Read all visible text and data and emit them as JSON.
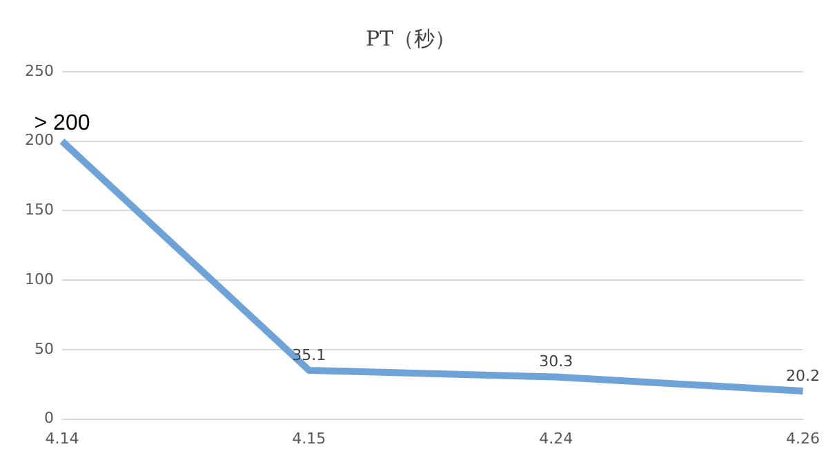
{
  "chart_data": {
    "type": "line",
    "title": "PT（秒）",
    "categories": [
      "4.14",
      "4.15",
      "4.24",
      "4.26"
    ],
    "series": [
      {
        "color": "#6fa3d8",
        "values": [
          200,
          35.1,
          30.3,
          20.2
        ],
        "value_labels": [
          "> 200",
          "35.1",
          "30.3",
          "20.2"
        ]
      }
    ],
    "ylim": [
      0,
      250
    ],
    "yticks": [
      0,
      50,
      100,
      150,
      200,
      250
    ],
    "grid": "y",
    "legend": false,
    "marker": "none"
  }
}
